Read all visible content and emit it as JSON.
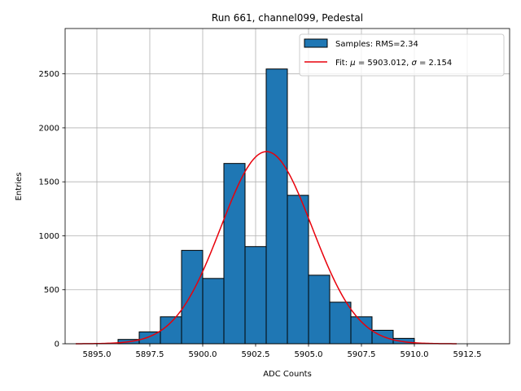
{
  "chart_data": {
    "type": "bar",
    "title": "Run 661, channel099, Pedestal",
    "xlabel": "ADC Counts",
    "ylabel": "Entries",
    "xlim": [
      5893.5,
      5914.5
    ],
    "ylim": [
      0,
      2920
    ],
    "grid": true,
    "legend_position": "top-right",
    "x_ticks": [
      5895.0,
      5897.5,
      5900.0,
      5902.5,
      5905.0,
      5907.5,
      5910.0,
      5912.5
    ],
    "x_tick_labels": [
      "5895.0",
      "5897.5",
      "5900.0",
      "5902.5",
      "5905.0",
      "5907.5",
      "5910.0",
      "5912.5"
    ],
    "y_ticks": [
      0,
      500,
      1000,
      1500,
      2000,
      2500
    ],
    "y_tick_labels": [
      "0",
      "500",
      "1000",
      "1500",
      "2000",
      "2500"
    ],
    "bin_width": 1,
    "histogram": {
      "name": "Samples: RMS=2.34",
      "color": "#1f77b4",
      "edge_color": "#000000",
      "bin_left_edges": [
        5896,
        5897,
        5898,
        5899,
        5900,
        5901,
        5902,
        5903,
        5904,
        5905,
        5906,
        5907,
        5908,
        5909
      ],
      "values": [
        40,
        110,
        250,
        865,
        605,
        1670,
        900,
        2545,
        1375,
        635,
        385,
        250,
        125,
        50
      ]
    },
    "fit": {
      "name_prefix": "Fit: ",
      "mu_symbol": "μ",
      "mu_text": " = 5903.012, ",
      "sigma_symbol": "σ",
      "sigma_text": " = 2.154",
      "color": "#e8000b",
      "type": "gaussian",
      "mu": 5903.012,
      "sigma": 2.154,
      "amplitude": 1780,
      "x_range": [
        5894,
        5912
      ]
    }
  }
}
